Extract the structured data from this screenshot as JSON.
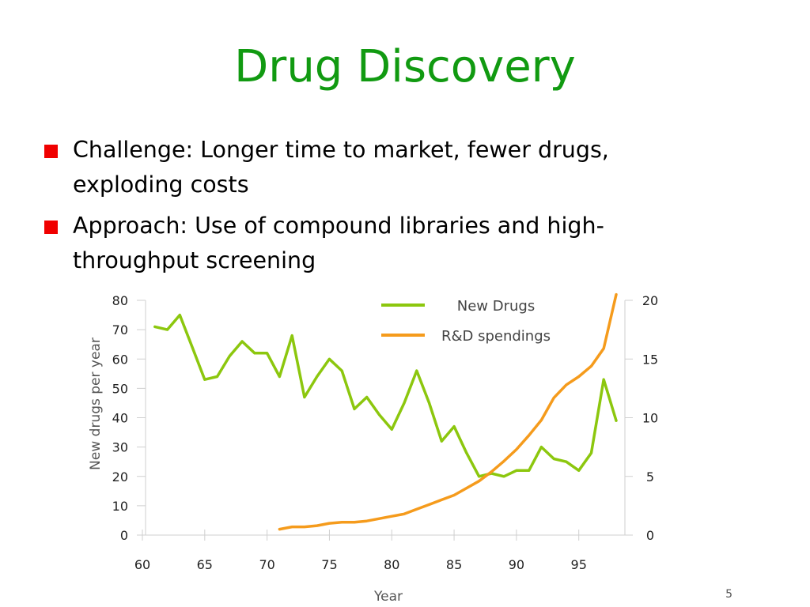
{
  "slide": {
    "title": "Drug Discovery",
    "bullets": [
      {
        "text": "Challenge: Longer time to market, fewer drugs,\nexploding costs"
      },
      {
        "text": "Approach: Use of compound libraries and high-\nthroughput screening"
      }
    ],
    "page_number": "5",
    "colors": {
      "title": "#119a11",
      "bullet": "#f00000"
    }
  },
  "chart_data": {
    "type": "line",
    "title": "",
    "xlabel": "Year",
    "ylabel": "New drugs per year",
    "y2label": "",
    "xlim": [
      60,
      98
    ],
    "ylim": [
      0,
      80
    ],
    "y2lim": [
      0,
      20
    ],
    "x_ticks": [
      60,
      65,
      70,
      75,
      80,
      85,
      90,
      95
    ],
    "x_tick_labels": [
      "60",
      "65",
      "70",
      "75",
      "80",
      "85",
      "90",
      "95"
    ],
    "y_ticks": [
      0,
      10,
      20,
      30,
      40,
      50,
      60,
      70,
      80
    ],
    "y_tick_labels": [
      "0",
      "10",
      "20",
      "30",
      "40",
      "50",
      "60",
      "70",
      "80"
    ],
    "y2_ticks": [
      0,
      5,
      10,
      15,
      20
    ],
    "y2_tick_labels": [
      "0",
      "5",
      "10",
      "15",
      "20"
    ],
    "legend": {
      "placement": "top-center"
    },
    "grid": false,
    "series": [
      {
        "name": "New Drugs",
        "axis": "left",
        "color": "#8cc70e",
        "x": [
          61,
          62,
          63,
          64,
          65,
          66,
          67,
          68,
          69,
          70,
          71,
          72,
          73,
          74,
          75,
          76,
          77,
          78,
          79,
          80,
          81,
          82,
          83,
          84,
          85,
          86,
          87,
          88,
          89,
          90,
          91,
          92,
          93,
          94,
          95,
          96,
          97,
          98
        ],
        "values": [
          71,
          70,
          75,
          64,
          53,
          54,
          61,
          66,
          62,
          62,
          54,
          68,
          47,
          54,
          60,
          56,
          43,
          47,
          41,
          36,
          45,
          56,
          45,
          32,
          37,
          28,
          20,
          21,
          20,
          22,
          22,
          30,
          26,
          25,
          22,
          28,
          53,
          39
        ]
      },
      {
        "name": "R&D spendings",
        "axis": "right",
        "color": "#f59b1c",
        "x": [
          71,
          72,
          73,
          74,
          75,
          76,
          77,
          78,
          79,
          80,
          81,
          82,
          83,
          84,
          85,
          86,
          87,
          88,
          89,
          90,
          91,
          92,
          93,
          94,
          95,
          96,
          97,
          98
        ],
        "values": [
          0.5,
          0.7,
          0.7,
          0.8,
          1.0,
          1.1,
          1.1,
          1.2,
          1.4,
          1.6,
          1.8,
          2.2,
          2.6,
          3.0,
          3.4,
          4.0,
          4.6,
          5.4,
          6.3,
          7.3,
          8.5,
          9.8,
          11.7,
          12.8,
          13.5,
          14.4,
          15.9,
          20.5
        ]
      }
    ]
  }
}
